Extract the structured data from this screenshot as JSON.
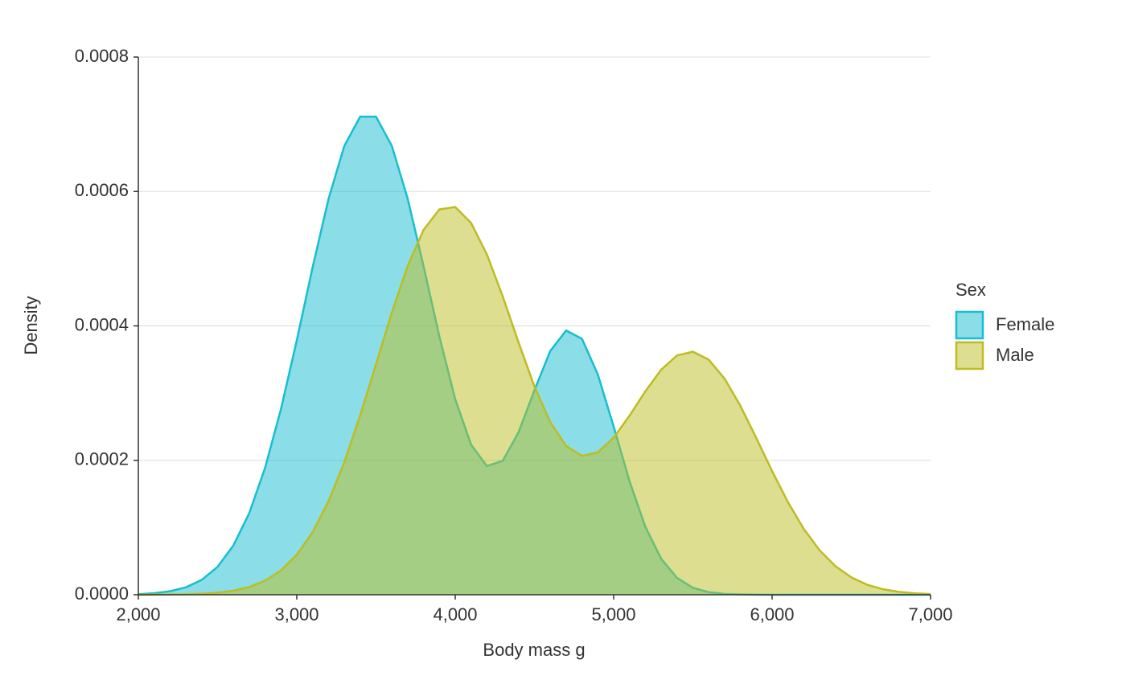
{
  "chart_data": {
    "type": "area",
    "x_label": "Body mass g",
    "y_label": "Density",
    "legend_title": "Sex",
    "legend": "right",
    "grid": true,
    "x": [
      2000,
      2100,
      2200,
      2300,
      2400,
      2500,
      2600,
      2700,
      2800,
      2900,
      3000,
      3100,
      3200,
      3300,
      3400,
      3500,
      3600,
      3700,
      3800,
      3900,
      4000,
      4100,
      4200,
      4300,
      4400,
      4500,
      4600,
      4700,
      4800,
      4900,
      5000,
      5100,
      5200,
      5300,
      5400,
      5500,
      5600,
      5700,
      5800,
      5900,
      6000,
      6100,
      6200,
      6300,
      6400,
      6500,
      6600,
      6700,
      6800,
      6900,
      7000
    ],
    "series": [
      {
        "name": "Female",
        "color": "#17becf",
        "values": [
          9e-07,
          2.3e-06,
          5.2e-06,
          1.1e-05,
          2.21e-05,
          4.15e-05,
          7.33e-05,
          0.0001214,
          0.0001889,
          0.000276,
          0.0003784,
          0.0004871,
          0.0005886,
          0.0006678,
          0.0007113,
          0.0007113,
          0.0006678,
          0.0005892,
          0.0004891,
          0.0003842,
          0.000291,
          0.0002234,
          0.0001914,
          0.0001993,
          0.0002419,
          0.0003043,
          0.0003627,
          0.0003931,
          0.0003808,
          0.0003277,
          0.0002502,
          0.000169,
          0.0001011,
          5.35e-05,
          2.51e-05,
          1.04e-05,
          3.8e-06,
          1.2e-06,
          4e-07,
          1e-07,
          0,
          0,
          0,
          0,
          0,
          0,
          0,
          0,
          0,
          0,
          0
        ]
      },
      {
        "name": "Male",
        "color": "#bcbd22",
        "values": [
          4e-08,
          1.1e-07,
          2.8e-07,
          6.4e-07,
          1.42e-06,
          3e-06,
          6e-06,
          1.15e-05,
          2.09e-05,
          3.61e-05,
          5.94e-05,
          9.31e-05,
          0.0001389,
          0.0001972,
          0.0002665,
          0.0003428,
          0.0004197,
          0.0004893,
          0.0005428,
          0.0005734,
          0.0005769,
          0.0005532,
          0.0005063,
          0.0004438,
          0.0003751,
          0.00031,
          0.0002567,
          0.0002213,
          0.0002066,
          0.0002117,
          0.0002337,
          0.0002664,
          0.0003027,
          0.0003349,
          0.0003561,
          0.0003616,
          0.0003497,
          0.0003215,
          0.000281,
          0.0002333,
          0.0001839,
          0.0001377,
          9.79e-05,
          6.61e-05,
          4.24e-05,
          2.58e-05,
          1.49e-05,
          8.2e-06,
          4.3e-06,
          2.1e-06,
          1e-06
        ]
      }
    ],
    "xlim": [
      2000,
      7000
    ],
    "xticks": [
      {
        "value": 2000,
        "label": "2,000"
      },
      {
        "value": 3000,
        "label": "3,000"
      },
      {
        "value": 4000,
        "label": "4,000"
      },
      {
        "value": 5000,
        "label": "5,000"
      },
      {
        "value": 6000,
        "label": "6,000"
      },
      {
        "value": 7000,
        "label": "7,000"
      }
    ],
    "ylim": [
      0,
      0.0008
    ],
    "yticks": [
      {
        "value": 0,
        "label": "0.0000"
      },
      0.0002,
      0.0004,
      0.0006,
      0.0008
    ]
  }
}
